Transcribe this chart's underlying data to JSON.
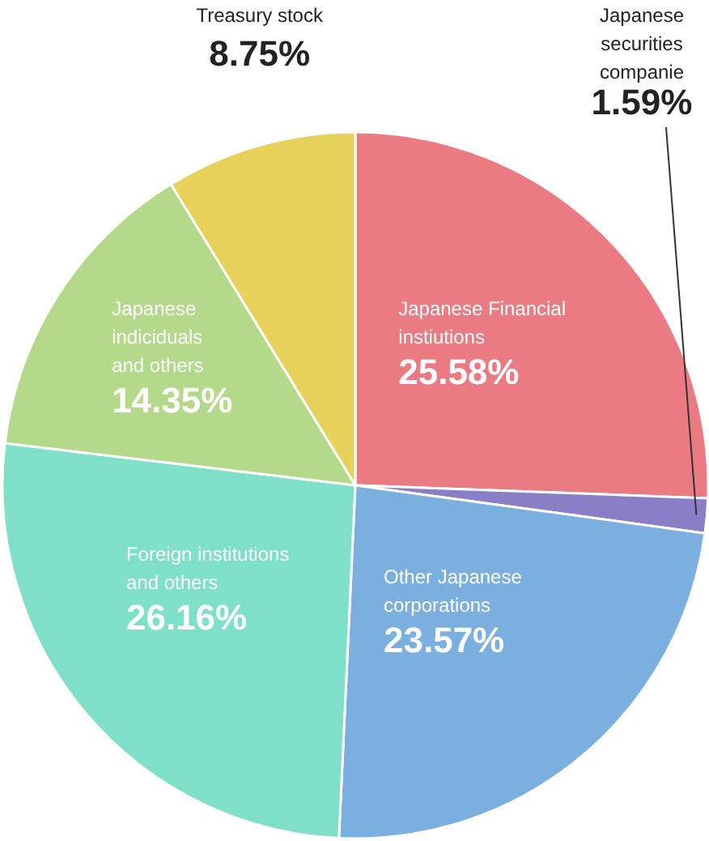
{
  "chart_data": {
    "type": "pie",
    "categories": [
      "Japanese Financial instiutions",
      "Japanese securities companie",
      "Other Japanese corporations",
      "Foreign institutions and others",
      "Japanese indiciduals and others",
      "Treasury stock"
    ],
    "values": [
      25.58,
      1.59,
      23.57,
      26.16,
      14.35,
      8.75
    ],
    "value_labels": [
      "25.58%",
      "1.59%",
      "23.57%",
      "26.16%",
      "14.35%",
      "8.75%"
    ],
    "colors": [
      "#ea7b83",
      "#8a7ec6",
      "#7aafe0",
      "#7ee0c8",
      "#b5d98b",
      "#e8d15a"
    ]
  }
}
